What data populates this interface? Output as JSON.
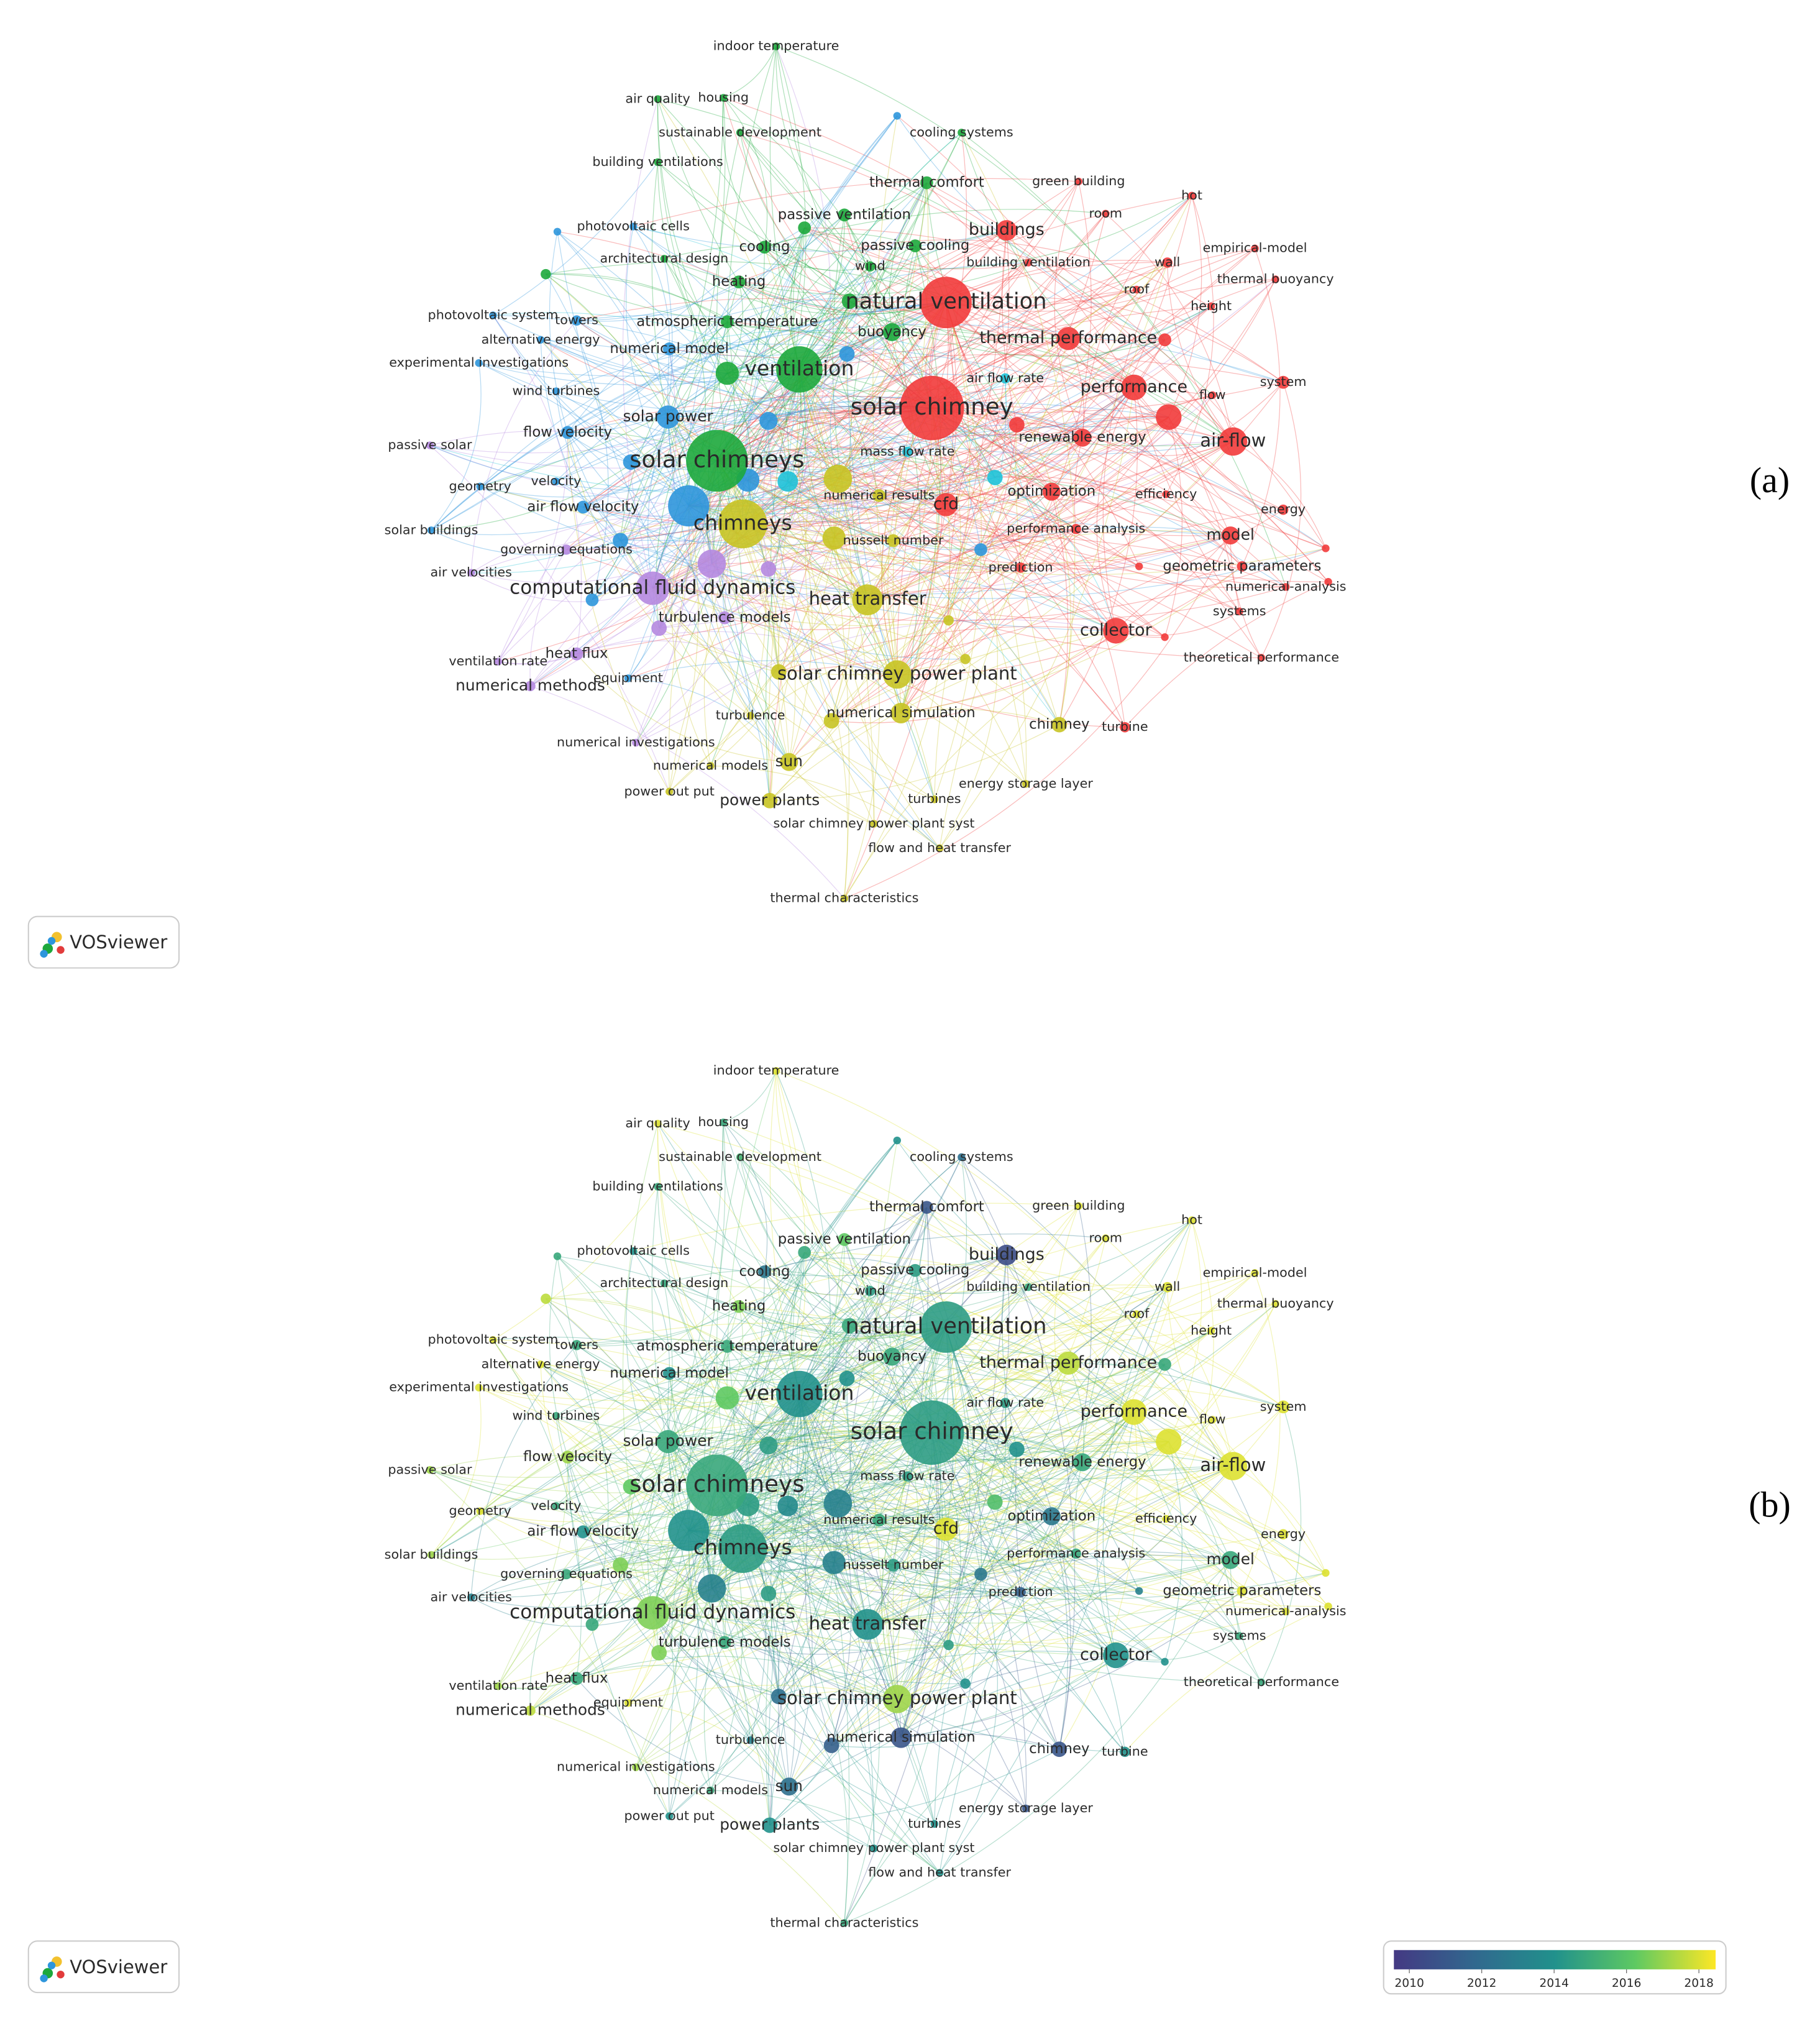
{
  "panels": [
    {
      "label": "(a)",
      "logo": "VOSviewer"
    },
    {
      "label": "(b)",
      "logo": "VOSviewer",
      "colorbar": {
        "ticks": [
          2010,
          2012,
          2014,
          2016,
          2018
        ]
      }
    }
  ],
  "nodes": [
    "indoor temperature",
    "air quality",
    "housing",
    "sustainable development",
    "cooling systems",
    "building ventilations",
    "thermal comfort",
    "green building",
    "room",
    "hot",
    "passive ventilation",
    "photovoltaic cells",
    "buildings",
    "cooling",
    "passive cooling",
    "empirical-model",
    "architectural design",
    "building ventilation",
    "wall",
    "heating",
    "wind",
    "thermal buoyancy",
    "roof",
    "natural ventilation",
    "height",
    "photovoltaic system",
    "towers",
    "atmospheric temperature",
    "buoyancy",
    "alternative energy",
    "thermal performance",
    "numerical model",
    "experimental investigations",
    "ventilation",
    "air flow rate",
    "system",
    "performance",
    "wind turbines",
    "flow",
    "solar chimney",
    "solar power",
    "renewable energy",
    "flow velocity",
    "air-flow",
    "passive solar",
    "mass flow rate",
    "solar chimneys",
    "geometry",
    "velocity",
    "optimization",
    "numerical results",
    "efficiency",
    "cfd",
    "energy",
    "air flow velocity",
    "chimneys",
    "performance analysis",
    "solar buildings",
    "model",
    "nusselt number",
    "governing equations",
    "prediction",
    "geometric parameters",
    "air velocities",
    "computational fluid dynamics",
    "numerical-analysis",
    "heat transfer",
    "systems",
    "turbulence models",
    "collector",
    "heat flux",
    "theoretical performance",
    "ventilation rate",
    "equipment",
    "solar chimney power plant",
    "numerical methods",
    "turbulence",
    "numerical simulation",
    "chimney",
    "turbine",
    "numerical investigations",
    "sun",
    "numerical models",
    "energy storage layer",
    "power out put",
    "power plants",
    "turbines",
    "solar chimney power plant syst",
    "flow and heat transfer",
    "thermal characteristics"
  ]
}
